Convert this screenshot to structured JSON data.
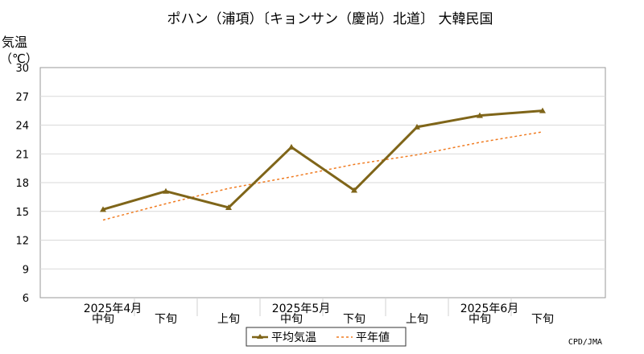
{
  "chart_data": {
    "type": "line",
    "title": "ポハン（浦項）〔キョンサン（慶尚）北道〕 大韓民国",
    "ylabel_line1": "気温",
    "ylabel_line2": "（℃）",
    "ylim": [
      6,
      30
    ],
    "yticks": [
      6,
      9,
      12,
      15,
      18,
      21,
      24,
      27,
      30
    ],
    "grid": true,
    "x_period_labels": [
      "中旬",
      "下旬",
      "上旬",
      "中旬",
      "下旬",
      "上旬",
      "中旬",
      "下旬"
    ],
    "x_month_labels": [
      {
        "label": "2025年4月",
        "index": 0
      },
      {
        "label": "2025年5月",
        "index": 3
      },
      {
        "label": "2025年6月",
        "index": 6
      }
    ],
    "series": [
      {
        "name": "平均気温",
        "style": "solid-marker",
        "color": "#7f6519",
        "values": [
          15.2,
          17.1,
          15.4,
          21.7,
          17.2,
          23.8,
          25.0,
          25.5
        ]
      },
      {
        "name": "平年値",
        "style": "dashed",
        "color": "#f07b20",
        "values": [
          14.1,
          15.8,
          17.4,
          18.6,
          19.9,
          20.9,
          22.2,
          23.3
        ]
      }
    ],
    "legend_position": "bottom-center"
  },
  "footer": {
    "credit": "CPD/JMA"
  }
}
